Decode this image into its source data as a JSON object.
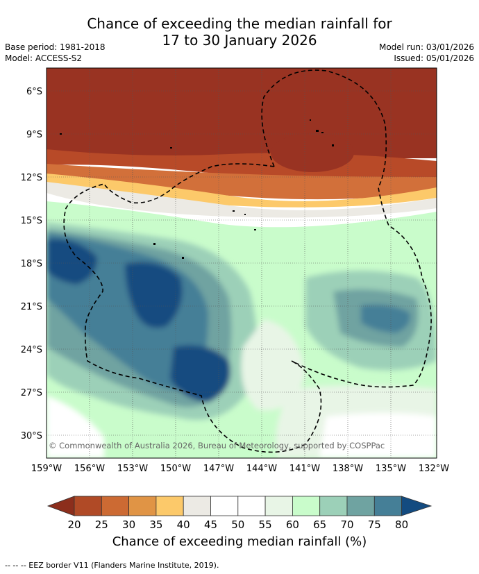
{
  "header": {
    "title_line1": "Chance of exceeding the median rainfall for",
    "title_line2": "17 to 30 January 2026",
    "base_period": "Base period: 1981-2018",
    "model": "Model: ACCESS-S2",
    "model_run": "Model run: 03/01/2026",
    "issued": "Issued: 05/01/2026"
  },
  "map": {
    "lat_labels": [
      "6°S",
      "9°S",
      "12°S",
      "15°S",
      "18°S",
      "21°S",
      "24°S",
      "27°S",
      "30°S"
    ],
    "lon_labels": [
      "159°W",
      "156°W",
      "153°W",
      "150°W",
      "147°W",
      "144°W",
      "141°W",
      "138°W",
      "135°W",
      "132°W"
    ],
    "copyright": "© Commonwealth of Australia 2026, Bureau of Meteorology, supported by COSPPac"
  },
  "colorbar": {
    "ticks": [
      "20",
      "25",
      "30",
      "35",
      "40",
      "45",
      "50",
      "55",
      "60",
      "65",
      "70",
      "75",
      "80"
    ],
    "colors": [
      "#8c2e1c",
      "#b04a26",
      "#cc6a33",
      "#e09445",
      "#fcc96a",
      "#eceae4",
      "#ffffff",
      "#ffffff",
      "#e8f5e6",
      "#c9fccb",
      "#9cd0b8",
      "#6fa3a1",
      "#457f97",
      "#134b80"
    ],
    "title": "Chance of exceeding median rainfall (%)"
  },
  "legend": {
    "eez_text": "--  --  -- EEZ border V11 (Flanders Marine Institute, 2019)."
  }
}
